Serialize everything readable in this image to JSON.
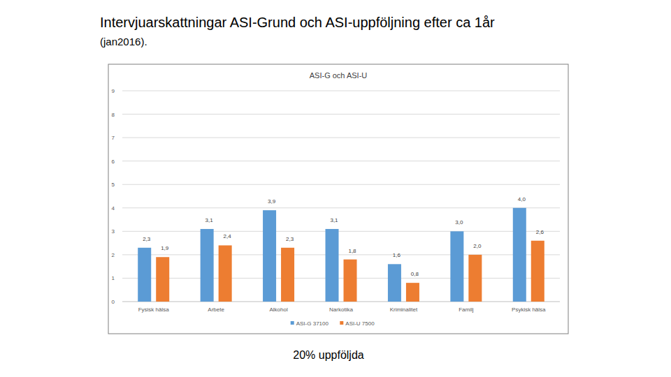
{
  "page": {
    "title": "Intervjuarskattningar ASI-Grund och ASI-uppföljning efter ca 1år",
    "subtitle": "(jan2016).",
    "note": "20% uppföljda"
  },
  "chart_data": {
    "type": "bar",
    "title": "ASI-G och ASI-U",
    "categories": [
      "Fysisk hälsa",
      "Arbete",
      "Alkohol",
      "Narkotika",
      "Kriminalitet",
      "Familj",
      "Psykisk hälsa"
    ],
    "series": [
      {
        "name": "ASI-G 37100",
        "color": "#5b9bd5",
        "values": [
          2.3,
          3.1,
          3.9,
          3.1,
          1.6,
          3.0,
          4.0
        ],
        "value_labels": [
          "2,3",
          "3,1",
          "3,9",
          "3,1",
          "1,6",
          "3,0",
          "4,0"
        ]
      },
      {
        "name": "ASI-U 7500",
        "color": "#ed7d31",
        "values": [
          1.9,
          2.4,
          2.3,
          1.8,
          0.8,
          2.0,
          2.6
        ],
        "value_labels": [
          "1,9",
          "2,4",
          "2,3",
          "1,8",
          "0,8",
          "2,0",
          "2,6"
        ]
      }
    ],
    "ylim": [
      0,
      9
    ],
    "yticks": [
      0,
      1,
      2,
      3,
      4,
      5,
      6,
      7,
      8,
      9
    ],
    "grid": true,
    "legend": "bottom",
    "data_labels": true
  }
}
